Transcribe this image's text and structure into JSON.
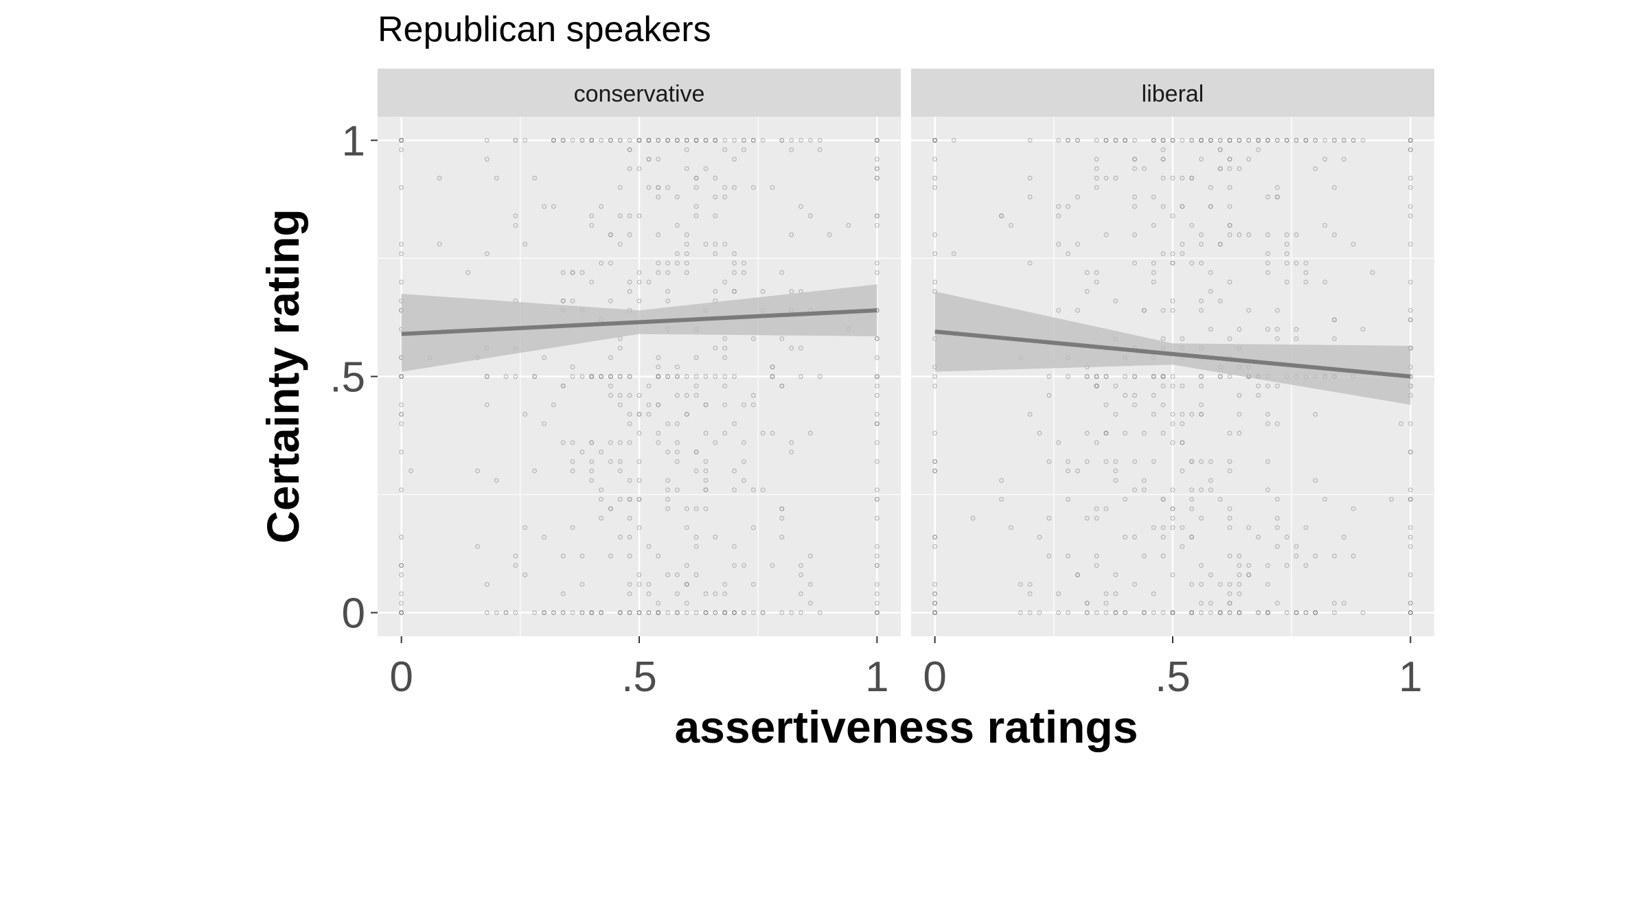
{
  "chart_data": {
    "type": "scatter",
    "title": "Republican speakers",
    "xlabel": "assertiveness ratings",
    "ylabel": "Certainty rating",
    "xlim": [
      -0.05,
      1.05
    ],
    "ylim": [
      -0.05,
      1.05
    ],
    "x_ticks": [
      {
        "value": 0,
        "label": "0"
      },
      {
        "value": 0.5,
        "label": ".5"
      },
      {
        "value": 1,
        "label": "1"
      }
    ],
    "y_ticks": [
      {
        "value": 0,
        "label": "0"
      },
      {
        "value": 0.5,
        "label": ".5"
      },
      {
        "value": 1,
        "label": "1"
      }
    ],
    "grid": true,
    "legend": "none",
    "colors": {
      "panel_background": "#ebebeb",
      "strip_background": "#d9d9d9",
      "grid": "#ffffff",
      "points": "#8c8c8c",
      "fit_line": "#7a7a7a",
      "confidence_band": "#bdbdbd",
      "axis_text": "#4d4d4d"
    },
    "facets": [
      {
        "label": "conservative",
        "fit": {
          "x": [
            0,
            1
          ],
          "y": [
            0.59,
            0.64
          ]
        },
        "ci": {
          "x": [
            0,
            0.5,
            1
          ],
          "lower": [
            0.51,
            0.59,
            0.585
          ],
          "upper": [
            0.675,
            0.64,
            0.695
          ]
        }
      },
      {
        "label": "liberal",
        "fit": {
          "x": [
            0,
            1
          ],
          "y": [
            0.595,
            0.5
          ]
        },
        "ci": {
          "x": [
            0,
            0.5,
            1
          ],
          "lower": [
            0.51,
            0.525,
            0.44
          ],
          "upper": [
            0.68,
            0.57,
            0.565
          ]
        }
      }
    ]
  }
}
